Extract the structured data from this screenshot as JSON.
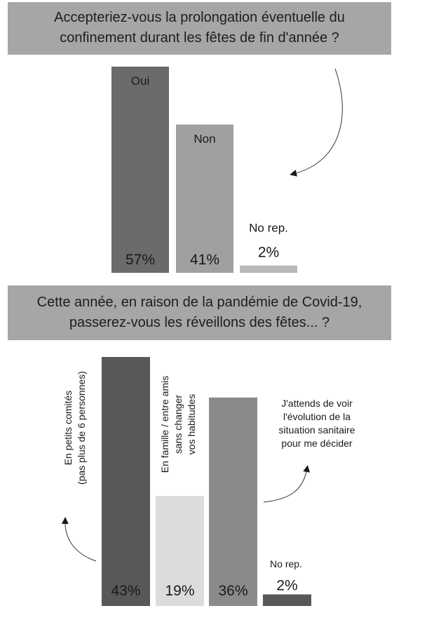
{
  "chart_data": [
    {
      "type": "bar",
      "title_lines": [
        "Accepteriez-vous la prolongation éventuelle du",
        "confinement durant les fêtes de fin d'année ?"
      ],
      "categories": [
        "Oui",
        "Non",
        "No rep."
      ],
      "values": [
        57,
        41,
        2
      ],
      "value_labels": [
        "57%",
        "41%",
        "2%"
      ],
      "colors": [
        "#6b6b6b",
        "#a0a0a0",
        "#b8b8b8"
      ],
      "ylim": [
        0,
        57
      ]
    },
    {
      "type": "bar",
      "title_lines": [
        "Cette année, en raison de la pandémie de Covid-19,",
        "passerez-vous les réveillons des fêtes... ?"
      ],
      "categories": [
        [
          "En petits comités",
          "(pas plus de 6 personnes)"
        ],
        [
          "En famille / entre amis",
          "sans changer",
          "vos habitudes"
        ],
        [
          "J'attends de voir",
          "l'évolution de la",
          "situation sanitaire",
          "pour me décider"
        ],
        [
          "No rep."
        ]
      ],
      "values": [
        43,
        19,
        36,
        2
      ],
      "value_labels": [
        "43%",
        "19%",
        "36%",
        "2%"
      ],
      "colors": [
        "#585858",
        "#dcdcdc",
        "#8a8a8a",
        "#585858"
      ],
      "ylim": [
        0,
        43
      ]
    }
  ]
}
